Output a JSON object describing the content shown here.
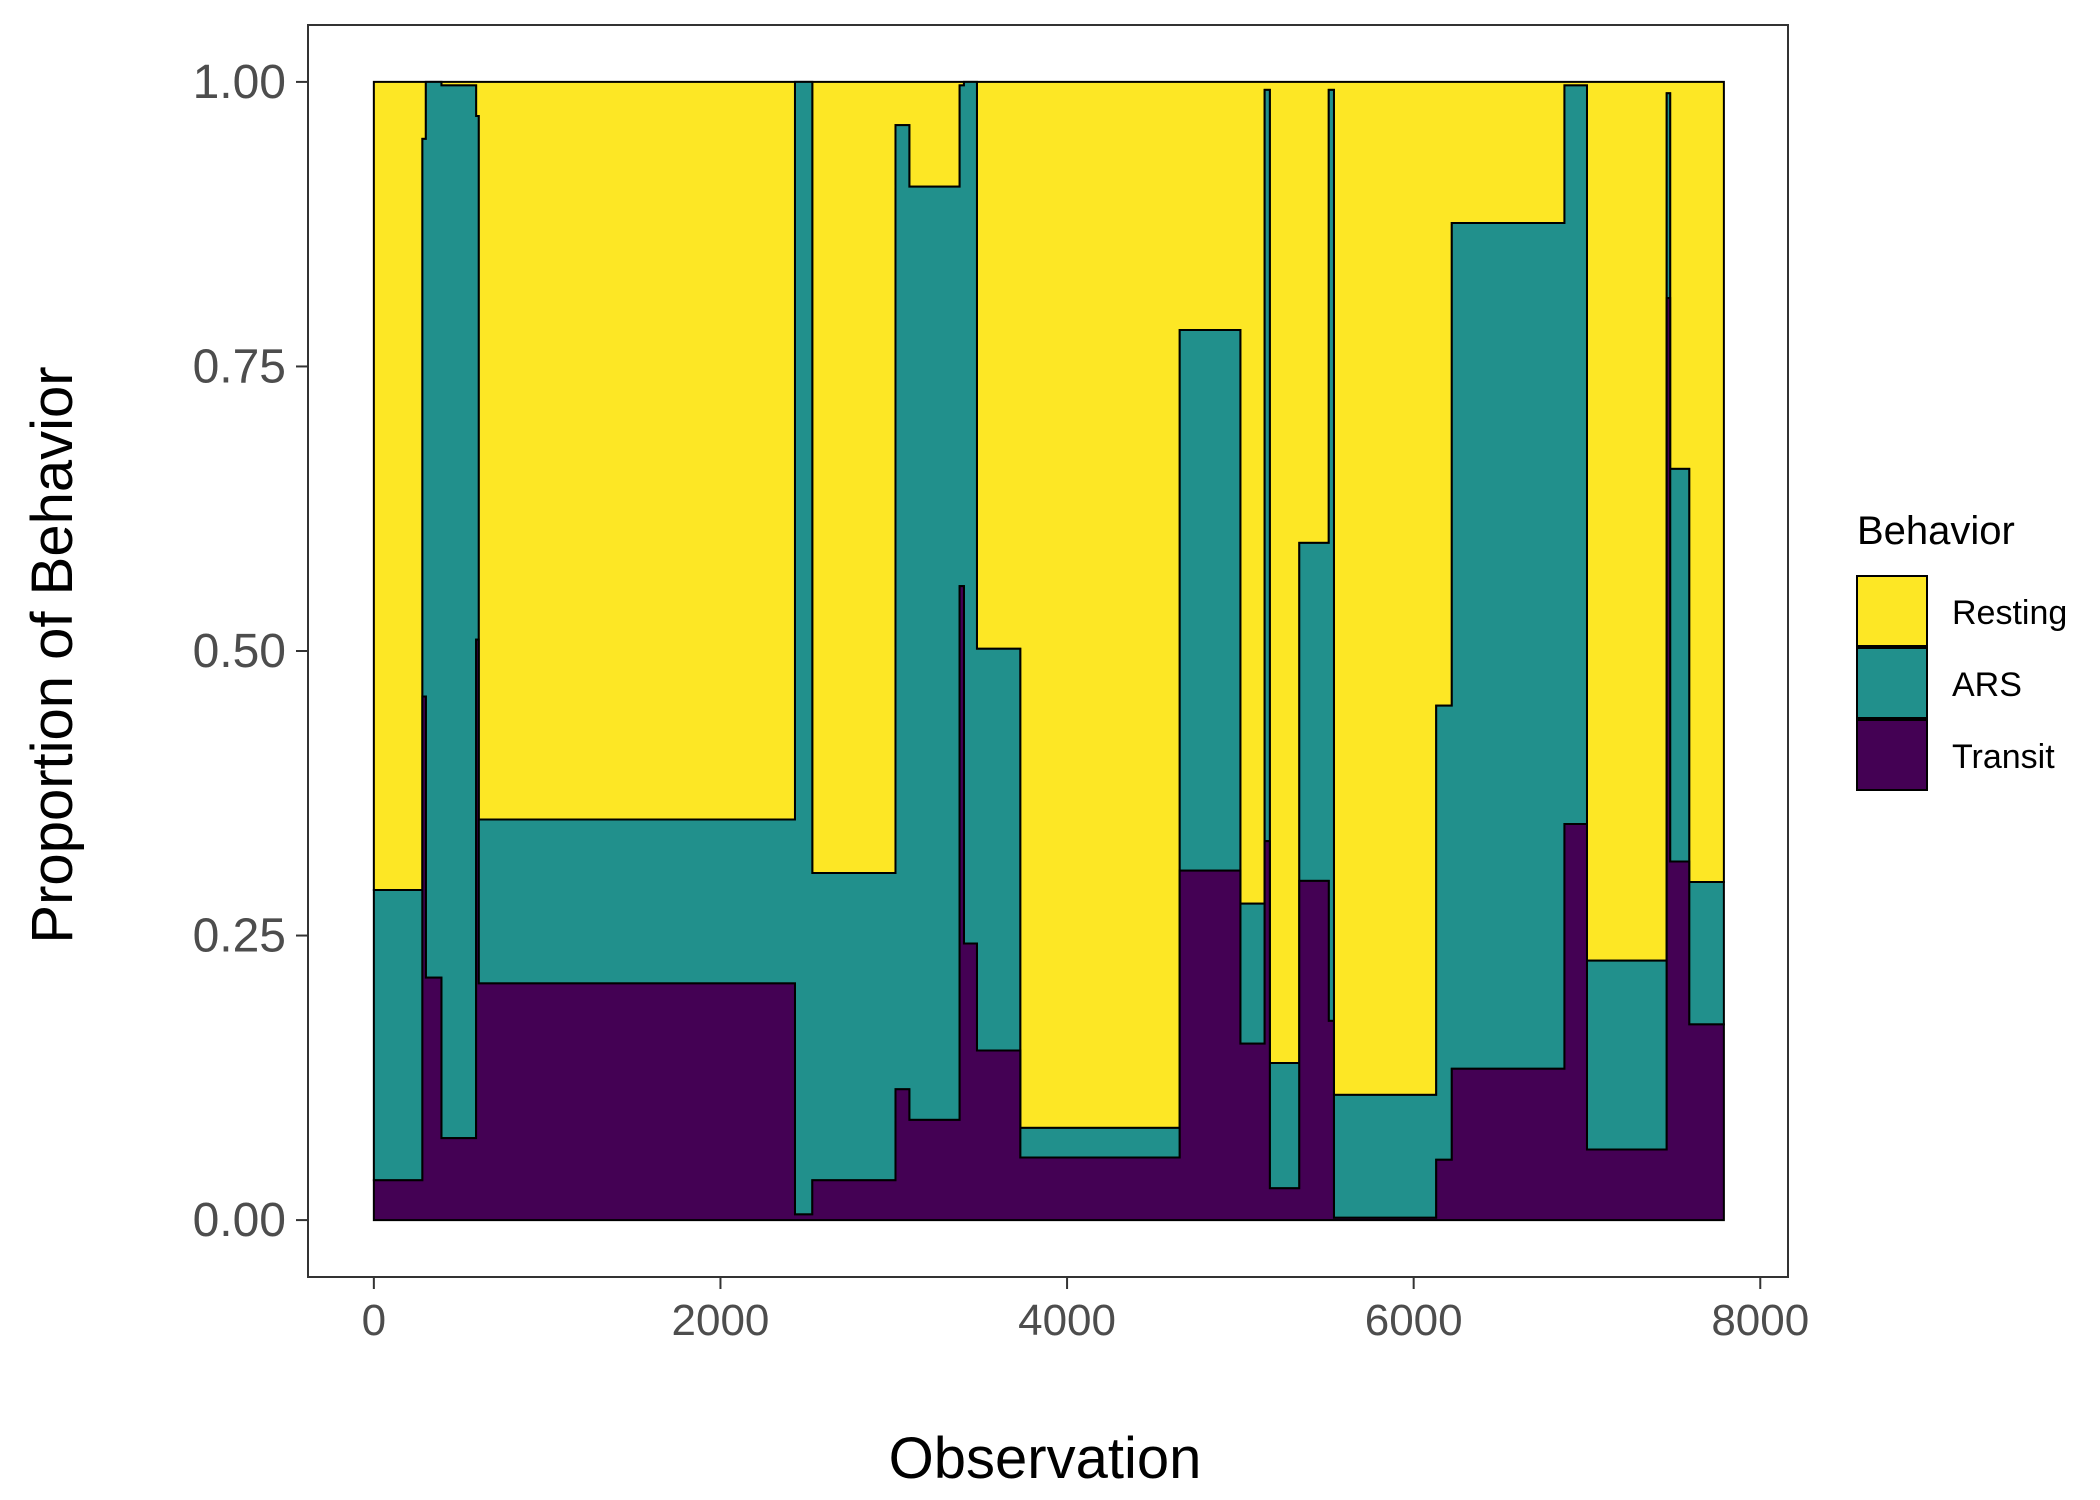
{
  "chart_data": {
    "type": "area",
    "stacked": true,
    "step": true,
    "title": "",
    "xlabel": "Observation",
    "ylabel": "Proportion of Behavior",
    "xlim": [
      -380,
      8160
    ],
    "ylim": [
      -0.05,
      1.05
    ],
    "x_ticks": [
      0,
      2000,
      4000,
      6000,
      8000
    ],
    "x_tick_labels": [
      "0",
      "2000",
      "4000",
      "6000",
      "8000"
    ],
    "y_ticks": [
      0,
      0.25,
      0.5,
      0.75,
      1.0
    ],
    "y_tick_labels": [
      "0.00",
      "0.25",
      "0.50",
      "0.75",
      "1.00"
    ],
    "grid": false,
    "legend": {
      "title": "Behavior",
      "position": "right",
      "items": [
        {
          "label": "Resting",
          "color": "#FDE725"
        },
        {
          "label": "ARS",
          "color": "#21908C"
        },
        {
          "label": "Transit",
          "color": "#440154"
        }
      ]
    },
    "segments": [
      {
        "x0": 0,
        "x1": 280,
        "transit": 0.035,
        "ars": 0.29
      },
      {
        "x0": 280,
        "x1": 300,
        "transit": 0.46,
        "ars": 0.95
      },
      {
        "x0": 300,
        "x1": 390,
        "transit": 0.213,
        "ars": 1.0
      },
      {
        "x0": 390,
        "x1": 590,
        "transit": 0.072,
        "ars": 0.997
      },
      {
        "x0": 590,
        "x1": 605,
        "transit": 0.51,
        "ars": 0.97
      },
      {
        "x0": 605,
        "x1": 2430,
        "transit": 0.208,
        "ars": 0.352
      },
      {
        "x0": 2430,
        "x1": 2530,
        "transit": 0.005,
        "ars": 1.0
      },
      {
        "x0": 2530,
        "x1": 3010,
        "transit": 0.035,
        "ars": 0.305
      },
      {
        "x0": 3010,
        "x1": 3090,
        "transit": 0.115,
        "ars": 0.962
      },
      {
        "x0": 3090,
        "x1": 3380,
        "transit": 0.088,
        "ars": 0.908
      },
      {
        "x0": 3380,
        "x1": 3405,
        "transit": 0.557,
        "ars": 0.997
      },
      {
        "x0": 3405,
        "x1": 3480,
        "transit": 0.243,
        "ars": 1.0
      },
      {
        "x0": 3480,
        "x1": 3730,
        "transit": 0.149,
        "ars": 0.502
      },
      {
        "x0": 3730,
        "x1": 4650,
        "transit": 0.055,
        "ars": 0.081
      },
      {
        "x0": 4650,
        "x1": 5000,
        "transit": 0.307,
        "ars": 0.782
      },
      {
        "x0": 5000,
        "x1": 5140,
        "transit": 0.155,
        "ars": 0.278
      },
      {
        "x0": 5140,
        "x1": 5170,
        "transit": 0.333,
        "ars": 0.993
      },
      {
        "x0": 5170,
        "x1": 5340,
        "transit": 0.028,
        "ars": 0.138
      },
      {
        "x0": 5340,
        "x1": 5510,
        "transit": 0.298,
        "ars": 0.595
      },
      {
        "x0": 5510,
        "x1": 5540,
        "transit": 0.175,
        "ars": 0.993
      },
      {
        "x0": 5540,
        "x1": 6130,
        "transit": 0.002,
        "ars": 0.11
      },
      {
        "x0": 6130,
        "x1": 6220,
        "transit": 0.053,
        "ars": 0.452
      },
      {
        "x0": 6220,
        "x1": 6870,
        "transit": 0.133,
        "ars": 0.876
      },
      {
        "x0": 6870,
        "x1": 7000,
        "transit": 0.348,
        "ars": 0.997
      },
      {
        "x0": 7000,
        "x1": 7460,
        "transit": 0.062,
        "ars": 0.228
      },
      {
        "x0": 7460,
        "x1": 7480,
        "transit": 0.81,
        "ars": 0.99
      },
      {
        "x0": 7480,
        "x1": 7590,
        "transit": 0.315,
        "ars": 0.66
      },
      {
        "x0": 7590,
        "x1": 7790,
        "transit": 0.172,
        "ars": 0.297
      }
    ]
  }
}
